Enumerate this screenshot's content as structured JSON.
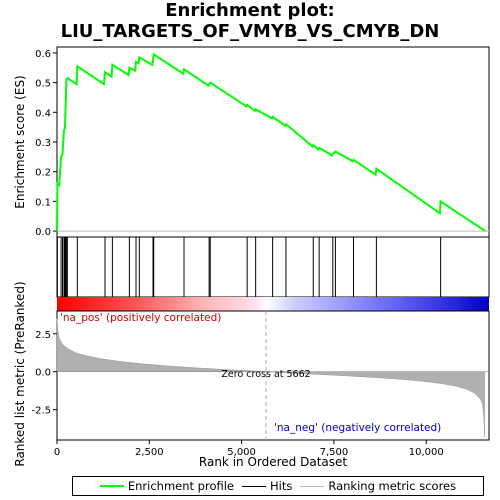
{
  "title": "Enrichment plot:\nLIU_TARGETS_OF_VMYB_VS_CMYB_DN",
  "legend": {
    "enrichment_profile": "Enrichment profile",
    "hits": "Hits",
    "ranking_metric": "Ranking metric scores"
  },
  "colors": {
    "profile": "#00ff00",
    "pos_label": "#cc0000",
    "neg_label": "#0000cc",
    "bar_pos": "#ff0000",
    "bar_neg": "#0000ff",
    "metric_fill": "#b0b0b0"
  },
  "chart_data": [
    {
      "type": "line",
      "title": "Enrichment plot: LIU_TARGETS_OF_VMYB_VS_CMYB_DN",
      "ylabel": "Enrichment score (ES)",
      "xlim": [
        0,
        11700
      ],
      "ylim": [
        -0.02,
        0.62
      ],
      "yticks": [
        0.0,
        0.1,
        0.2,
        0.3,
        0.4,
        0.5,
        0.6
      ],
      "ytick_labels": [
        "0.0",
        "0.1",
        "0.2",
        "0.3",
        "0.4",
        "0.5",
        "0.6"
      ],
      "series": [
        {
          "name": "Enrichment profile",
          "x": [
            0,
            10,
            60,
            110,
            150,
            190,
            215,
            235,
            255,
            280,
            530,
            550,
            1270,
            1300,
            1480,
            1500,
            1940,
            1960,
            2120,
            2140,
            2210,
            2230,
            2580,
            2600,
            2620,
            3420,
            3440,
            4100,
            4120,
            4150,
            5130,
            5150,
            5360,
            5380,
            5820,
            5840,
            6180,
            6200,
            6920,
            6940,
            7080,
            7100,
            7450,
            7470,
            7520,
            7540,
            8010,
            8030,
            8630,
            8650,
            10370,
            10390,
            11600
          ],
          "y": [
            0.0,
            0.16,
            0.155,
            0.25,
            0.26,
            0.34,
            0.345,
            0.43,
            0.51,
            0.515,
            0.495,
            0.555,
            0.495,
            0.535,
            0.52,
            0.56,
            0.525,
            0.55,
            0.54,
            0.57,
            0.565,
            0.585,
            0.56,
            0.575,
            0.595,
            0.53,
            0.545,
            0.49,
            0.495,
            0.5,
            0.42,
            0.425,
            0.405,
            0.41,
            0.38,
            0.385,
            0.355,
            0.36,
            0.285,
            0.29,
            0.275,
            0.28,
            0.255,
            0.26,
            0.265,
            0.268,
            0.235,
            0.24,
            0.19,
            0.21,
            0.06,
            0.1,
            0.0
          ]
        }
      ]
    },
    {
      "type": "scatter",
      "title": "",
      "ylabel": "",
      "series": [
        {
          "name": "Hits",
          "x": [
            10,
            110,
            150,
            190,
            215,
            235,
            255,
            280,
            550,
            1300,
            1500,
            1960,
            2140,
            2230,
            2600,
            2620,
            3440,
            4120,
            4150,
            5150,
            5380,
            5840,
            6200,
            6940,
            7100,
            7470,
            7540,
            8030,
            8650,
            10390
          ]
        }
      ]
    },
    {
      "type": "area",
      "title": "",
      "xlabel": "Rank in Ordered Dataset",
      "ylabel": "Ranked list metric (PreRanked)",
      "xlim": [
        0,
        11700
      ],
      "ylim": [
        -4.5,
        4.0
      ],
      "yticks": [
        -2.5,
        0.0,
        2.5
      ],
      "ytick_labels": [
        "-2.5",
        "0.0",
        "2.5"
      ],
      "xticks": [
        0,
        2500,
        5000,
        7500,
        10000
      ],
      "xtick_labels": [
        "0",
        "2,500",
        "5,000",
        "7,500",
        "10,000"
      ],
      "zero_cross": 5662,
      "zero_cross_label": "Zero cross at 5662",
      "pos_label": "'na_pos' (positively correlated)",
      "neg_label": "'na_neg' (negatively correlated)",
      "series": [
        {
          "name": "Ranking metric scores",
          "x": [
            0,
            20,
            60,
            150,
            300,
            500,
            800,
            1200,
            1700,
            2300,
            3000,
            3800,
            4600,
            5300,
            5662,
            6200,
            7000,
            7800,
            8600,
            9300,
            9900,
            10400,
            10800,
            11100,
            11300,
            11450,
            11520,
            11560,
            11580
          ],
          "y": [
            3.5,
            2.8,
            2.2,
            1.8,
            1.5,
            1.25,
            1.05,
            0.85,
            0.68,
            0.52,
            0.38,
            0.25,
            0.14,
            0.05,
            0.0,
            -0.07,
            -0.17,
            -0.27,
            -0.38,
            -0.5,
            -0.63,
            -0.78,
            -0.95,
            -1.15,
            -1.4,
            -1.75,
            -2.1,
            -3.0,
            -4.3
          ]
        }
      ]
    }
  ]
}
